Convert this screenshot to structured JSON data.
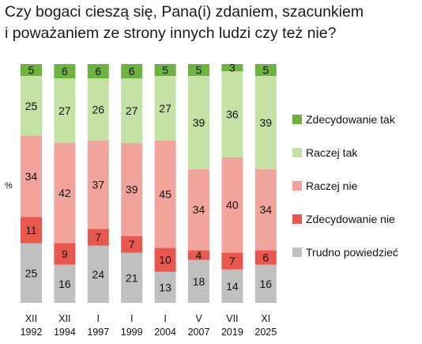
{
  "chart_data": {
    "type": "bar",
    "stacked": true,
    "title": [
      "Czy bogaci cieszą się, Pana(i) zdaniem, szacunkiem",
      "i poważaniem ze strony innych ludzi czy też nie?"
    ],
    "ylabel": "%",
    "ylim": [
      0,
      100
    ],
    "categories": [
      [
        "XII",
        "1992"
      ],
      [
        "XII",
        "1994"
      ],
      [
        "I",
        "1997"
      ],
      [
        "I",
        "1999"
      ],
      [
        "I",
        "2004"
      ],
      [
        "V",
        "2007"
      ],
      [
        "VII",
        "2019"
      ],
      [
        "XI",
        "2025"
      ]
    ],
    "series": [
      {
        "name": "Trudno powiedzieć",
        "color": "#c0c0c0",
        "values": [
          25,
          16,
          24,
          21,
          13,
          18,
          14,
          16
        ]
      },
      {
        "name": "Zdecydowanie nie",
        "color": "#e8584f",
        "values": [
          11,
          9,
          7,
          7,
          10,
          4,
          7,
          6
        ]
      },
      {
        "name": "Raczej nie",
        "color": "#f1a49c",
        "values": [
          34,
          42,
          37,
          39,
          45,
          34,
          40,
          34
        ]
      },
      {
        "name": "Raczej tak",
        "color": "#c4e2a3",
        "values": [
          25,
          27,
          26,
          27,
          27,
          39,
          36,
          39
        ]
      },
      {
        "name": "Zdecydowanie tak",
        "color": "#6db33f",
        "values": [
          5,
          6,
          6,
          6,
          5,
          5,
          3,
          5
        ]
      }
    ],
    "legend_order": [
      "Zdecydowanie tak",
      "Raczej tak",
      "Raczej nie",
      "Zdecydowanie nie",
      "Trudno powiedzieć"
    ],
    "legend_position": "right",
    "grid": false
  }
}
